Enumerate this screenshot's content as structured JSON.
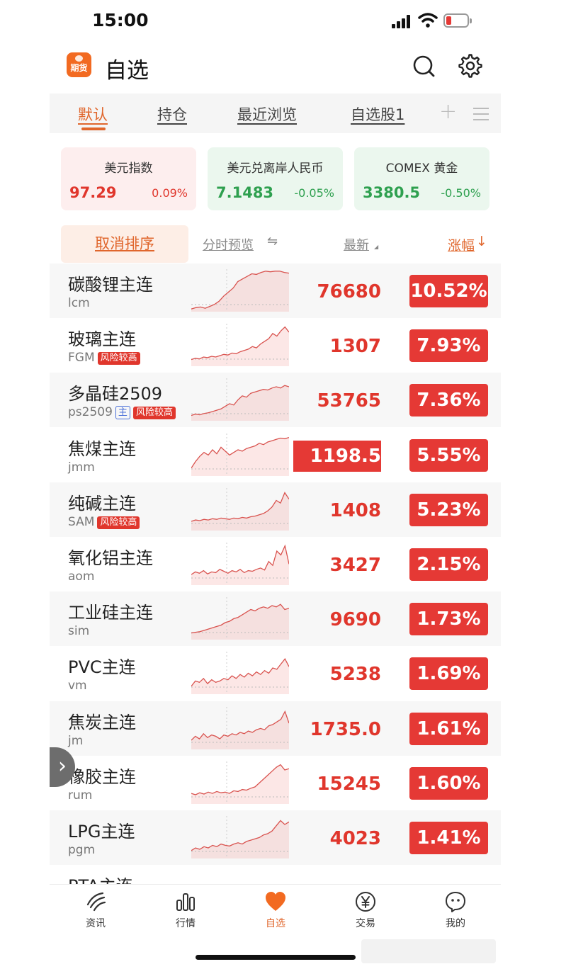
{
  "status": {
    "time": "15:00"
  },
  "header": {
    "title": "自选",
    "logo_text": "期货",
    "search_icon": "search-icon",
    "settings_icon": "gear-icon"
  },
  "tabs": [
    {
      "label": "默认",
      "active": true
    },
    {
      "label": "持仓"
    },
    {
      "label": "最近浏览"
    },
    {
      "label": "自选股1"
    }
  ],
  "indices": [
    {
      "name": "美元指数",
      "value": "97.29",
      "change": "0.09%",
      "trend": "up"
    },
    {
      "name": "美元兑离岸人民币",
      "value": "7.1483",
      "change": "-0.05%",
      "trend": "down"
    },
    {
      "name": "COMEX 黄金",
      "value": "3380.5",
      "change": "-0.50%",
      "trend": "down"
    }
  ],
  "sort_header": {
    "cancel_sort": "取消排序",
    "intraday_preview": "分时预览",
    "swap_icon": "⇋",
    "latest": "最新",
    "change": "涨幅",
    "change_arrow": "↓"
  },
  "rows": [
    {
      "name": "碳酸锂主连",
      "code": "lcm",
      "last": "76680",
      "change": "10.52%",
      "tags": [],
      "highlight": false,
      "spark": [
        2,
        4,
        5,
        3,
        6,
        9,
        14,
        22,
        28,
        34,
        44,
        48,
        52,
        56,
        55,
        58,
        60,
        59,
        60,
        60,
        58,
        57
      ]
    },
    {
      "name": "玻璃主连",
      "code": "FGM",
      "last": "1307",
      "change": "7.93%",
      "tags": [
        "风险较高"
      ],
      "highlight": false,
      "spark": [
        8,
        10,
        9,
        12,
        11,
        13,
        12,
        14,
        16,
        15,
        18,
        17,
        20,
        22,
        24,
        28,
        26,
        32,
        36,
        40,
        48,
        44,
        52,
        58,
        50
      ]
    },
    {
      "name": "多晶硅2509",
      "code": "ps2509",
      "last": "53765",
      "change": "7.36%",
      "tags": [
        "主",
        "风险较高"
      ],
      "highlight": false,
      "spark": [
        6,
        8,
        7,
        9,
        10,
        12,
        14,
        16,
        20,
        24,
        22,
        30,
        36,
        34,
        40,
        42,
        44,
        46,
        45,
        48,
        50,
        48,
        52,
        50
      ]
    },
    {
      "name": "焦煤主连",
      "code": "jmm",
      "last": "1198.5",
      "change": "5.55%",
      "tags": [],
      "highlight": true,
      "spark": [
        10,
        20,
        28,
        34,
        30,
        38,
        32,
        42,
        36,
        30,
        34,
        38,
        36,
        40,
        42,
        44,
        48,
        46,
        50,
        52,
        54,
        56,
        55,
        57
      ]
    },
    {
      "name": "纯碱主连",
      "code": "SAM",
      "last": "1408",
      "change": "5.23%",
      "tags": [
        "风险较高"
      ],
      "highlight": false,
      "spark": [
        12,
        14,
        13,
        15,
        14,
        16,
        15,
        17,
        16,
        15,
        17,
        16,
        18,
        17,
        19,
        20,
        22,
        24,
        28,
        34,
        44,
        40,
        56,
        46
      ]
    },
    {
      "name": "氧化铝主连",
      "code": "aom",
      "last": "3427",
      "change": "2.15%",
      "tags": [],
      "highlight": false,
      "spark": [
        14,
        18,
        16,
        20,
        15,
        18,
        17,
        22,
        19,
        16,
        20,
        18,
        22,
        17,
        20,
        19,
        22,
        24,
        21,
        34,
        28,
        50,
        44,
        58,
        30
      ]
    },
    {
      "name": "工业硅主连",
      "code": "sim",
      "last": "9690",
      "change": "1.73%",
      "tags": [],
      "highlight": false,
      "spark": [
        8,
        9,
        10,
        12,
        14,
        16,
        18,
        20,
        24,
        26,
        30,
        32,
        36,
        40,
        44,
        42,
        46,
        48,
        46,
        50,
        48,
        52,
        44,
        46
      ]
    },
    {
      "name": "PVC主连",
      "code": "vm",
      "last": "5238",
      "change": "1.69%",
      "tags": [],
      "highlight": false,
      "spark": [
        10,
        18,
        16,
        22,
        14,
        20,
        16,
        18,
        22,
        20,
        26,
        22,
        28,
        24,
        30,
        26,
        32,
        28,
        34,
        30,
        38,
        36,
        44,
        52,
        40
      ]
    },
    {
      "name": "焦炭主连",
      "code": "jm",
      "last": "1735.0",
      "change": "1.61%",
      "tags": [],
      "highlight": false,
      "spark": [
        12,
        18,
        14,
        22,
        16,
        20,
        18,
        14,
        20,
        18,
        22,
        20,
        24,
        22,
        26,
        24,
        28,
        30,
        28,
        34,
        36,
        40,
        44,
        56,
        38
      ]
    },
    {
      "name": "橡胶主连",
      "code": "rum",
      "last": "15245",
      "change": "1.60%",
      "tags": [],
      "highlight": false,
      "spark": [
        14,
        12,
        15,
        13,
        16,
        14,
        17,
        15,
        16,
        14,
        18,
        17,
        20,
        19,
        22,
        24,
        30,
        36,
        42,
        48,
        54,
        58,
        50,
        52
      ]
    },
    {
      "name": "LPG主连",
      "code": "pgm",
      "last": "4023",
      "change": "1.41%",
      "tags": [],
      "highlight": false,
      "spark": [
        10,
        14,
        12,
        16,
        14,
        18,
        16,
        20,
        18,
        17,
        20,
        22,
        20,
        24,
        26,
        28,
        30,
        34,
        36,
        40,
        48,
        56,
        50,
        54
      ]
    },
    {
      "name": "PTA主连",
      "code": "",
      "last": "",
      "change": "",
      "tags": [],
      "highlight": false,
      "spark": []
    }
  ],
  "bottom_nav": [
    {
      "label": "资讯",
      "icon": "news-icon"
    },
    {
      "label": "行情",
      "icon": "bar-chart-icon"
    },
    {
      "label": "自选",
      "icon": "heart-icon",
      "active": true
    },
    {
      "label": "交易",
      "icon": "yuan-icon"
    },
    {
      "label": "我的",
      "icon": "profile-icon"
    }
  ],
  "colors": {
    "accent": "#e0662c",
    "up": "#e53935",
    "down": "#2ea04f"
  }
}
